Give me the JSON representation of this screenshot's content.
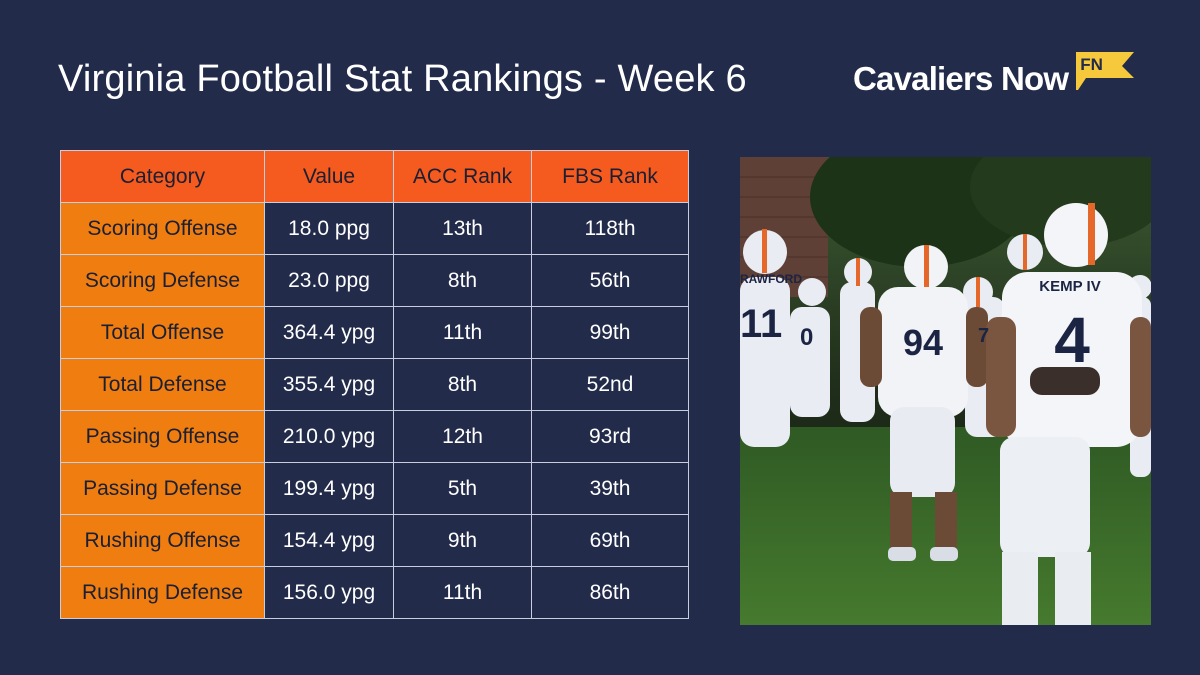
{
  "header": {
    "title": "Virginia Football Stat Rankings - Week 6",
    "brand_name": "Cavaliers Now",
    "brand_badge": "FN"
  },
  "table": {
    "columns": [
      "Category",
      "Value",
      "ACC Rank",
      "FBS Rank"
    ],
    "rows": [
      [
        "Scoring Offense",
        "18.0 ppg",
        "13th",
        "118th"
      ],
      [
        "Scoring Defense",
        "23.0 ppg",
        "8th",
        "56th"
      ],
      [
        "Total Offense",
        "364.4 ypg",
        "11th",
        "99th"
      ],
      [
        "Total Defense",
        "355.4 ypg",
        "8th",
        "52nd"
      ],
      [
        "Passing Offense",
        "210.0 ypg",
        "12th",
        "93rd"
      ],
      [
        "Passing Defense",
        "199.4 ypg",
        "5th",
        "39th"
      ],
      [
        "Rushing Offense",
        "154.4 ypg",
        "9th",
        "69th"
      ],
      [
        "Rushing Defense",
        "156.0 ypg",
        "11th",
        "86th"
      ]
    ]
  },
  "photo": {
    "jersey_numbers": [
      "94",
      "4",
      "0",
      "11",
      "7"
    ],
    "name_plates": [
      "KEMP IV",
      "RAWFORD"
    ]
  },
  "colors": {
    "background": "#222b4a",
    "header_orange": "#f55a1e",
    "category_orange": "#ef7d10",
    "badge_yellow": "#f6c93c"
  }
}
